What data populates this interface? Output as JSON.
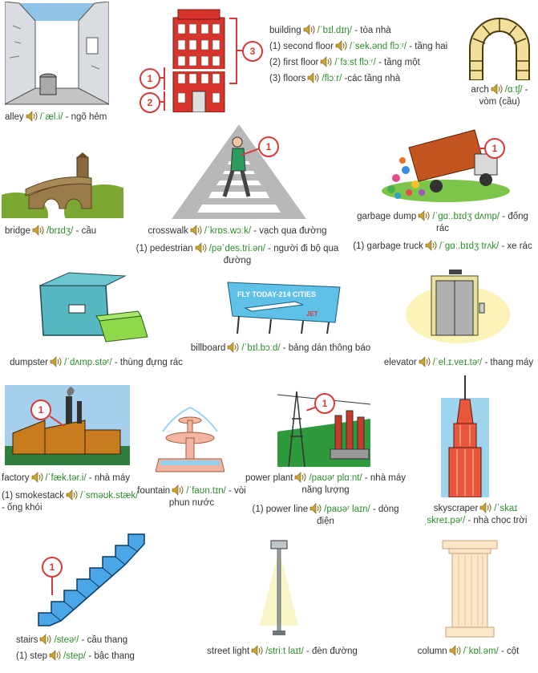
{
  "entries": {
    "alley": {
      "word": "alley",
      "ipa": "/ˈæl.i/",
      "meaning": "- ngõ hẻm"
    },
    "building": {
      "word": "building",
      "ipa": "/ˈbɪl.dɪŋ/",
      "meaning": "- tòa nhà",
      "sub1": {
        "label": "(1) second floor",
        "ipa": "/ˈsek.ənd flɔːʳ/",
        "meaning": "- tầng hai"
      },
      "sub2": {
        "label": "(2) first floor",
        "ipa": "/ˈfɜːst flɔːʳ/",
        "meaning": "- tầng một"
      },
      "sub3": {
        "label": "(3) floors",
        "ipa": "/flɔːr/",
        "meaning": "-các tầng nhà"
      }
    },
    "arch": {
      "word": "arch",
      "ipa": "/ɑːtʃ/",
      "meaning": "- vòm (cầu)"
    },
    "bridge": {
      "word": "bridge",
      "ipa": "/brɪdʒ/",
      "meaning": "- cầu"
    },
    "crosswalk": {
      "word": "crosswalk",
      "ipa": "/ˈkrɒs.wɔːk/",
      "meaning": "- vạch qua đường",
      "sub1": {
        "label": "(1) pedestrian",
        "ipa": "/pəˈdes.tri.ən/",
        "meaning": "- người đi bộ qua đường"
      }
    },
    "garbage_dump": {
      "word": "garbage dump",
      "ipa": "/ˈgɑː.bɪdʒ dʌmp/",
      "meaning": "- đống rác",
      "sub1": {
        "label": "(1) garbage truck",
        "ipa": "/ˈgɑː.bɪdʒ trʌk/",
        "meaning": "- xe rác"
      }
    },
    "dumpster": {
      "word": "dumpster",
      "ipa": "/ˈdʌmp.stəʳ/",
      "meaning": "- thùng đựng rác"
    },
    "billboard": {
      "word": "billboard",
      "ipa": "/ˈbɪl.bɔːd/",
      "meaning": "- bảng dán thông báo",
      "sign_text": "FLY  TODAY-214 CITIES",
      "sign_brand": "JET"
    },
    "elevator": {
      "word": "elevator",
      "ipa": "/ˈel.ɪ.veɪ.təʳ/",
      "meaning": "- thang máy"
    },
    "factory": {
      "word": "factory",
      "ipa": "/ˈfæk.tər.i/",
      "meaning": "- nhà máy",
      "sub1": {
        "label": "(1) smokestack",
        "ipa": "/ˈsməʊk.stæk/",
        "meaning": "- ống khói"
      }
    },
    "fountain": {
      "word": "fountain",
      "ipa": "/ˈfaʊn.tɪn/",
      "meaning": "- vòi phun nước"
    },
    "power_plant": {
      "word": "power plant",
      "ipa": "/paʊəʳ plɑːnt/",
      "meaning": "- nhà máy năng lượng",
      "sub1": {
        "label": "(1) power line",
        "ipa": "/paʊəʳ laɪn/",
        "meaning": "- dòng điện"
      }
    },
    "skyscraper": {
      "word": "skyscraper",
      "ipa": "/ˈskaɪ ˌskreɪ.pəʳ/",
      "meaning": "- nhà chọc trời"
    },
    "stairs": {
      "word": "stairs",
      "ipa": "/steəʳ/",
      "meaning": "- cầu thang",
      "sub1": {
        "label": "(1) step",
        "ipa": "/step/",
        "meaning": "- bậc thang"
      }
    },
    "street_light": {
      "word": "street light",
      "ipa": "/striːt laɪt/",
      "meaning": "- đèn đường"
    },
    "column": {
      "word": "column",
      "ipa": "/ˈkɒl.əm/",
      "meaning": "- cột"
    }
  },
  "markers": {
    "one": "1",
    "two": "2",
    "three": "3"
  },
  "icons": {
    "speaker": "speaker-icon"
  },
  "colors": {
    "ipa": "#2e8b2e",
    "marker": "#d63a3a"
  }
}
